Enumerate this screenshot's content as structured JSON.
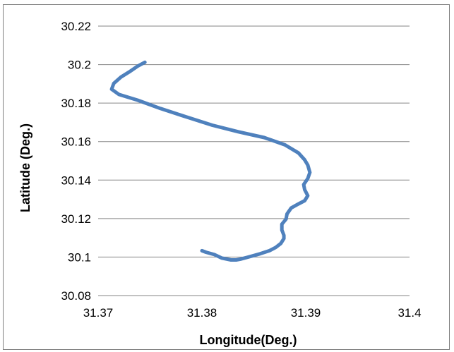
{
  "chart_data": {
    "type": "line",
    "title": "",
    "xlabel": "Longitude(Deg.)",
    "ylabel": "Latitude (Deg.)",
    "xlim": [
      31.37,
      31.4
    ],
    "ylim": [
      30.08,
      30.22
    ],
    "x_ticks": [
      "31.37",
      "31.38",
      "31.39",
      "31.4"
    ],
    "y_ticks": [
      "30.22",
      "30.2",
      "30.18",
      "30.16",
      "30.14",
      "30.12",
      "30.1",
      "30.08"
    ],
    "grid": "horizontal",
    "legend": "none",
    "line_color": "#4f81bd",
    "series": [
      {
        "x": [
          31.3745,
          31.3738,
          31.373,
          31.3722,
          31.3715,
          31.3713,
          31.372,
          31.3738,
          31.376,
          31.3785,
          31.381,
          31.3835,
          31.386,
          31.388,
          31.3893,
          31.3899,
          31.3902,
          31.3904,
          31.3902,
          31.3898,
          31.3899,
          31.3902,
          31.3899,
          31.3893,
          31.3886,
          31.3882,
          31.3881,
          31.3877,
          31.3877,
          31.3879,
          31.3879,
          31.3876,
          31.3871,
          31.3865,
          31.3856,
          31.3846,
          31.3837,
          31.3833,
          31.3828,
          31.3819,
          31.3812,
          31.3804,
          31.38
        ],
        "y": [
          30.2012,
          30.1992,
          30.1962,
          30.1935,
          30.1902,
          30.1872,
          30.1845,
          30.1815,
          30.1772,
          30.1728,
          30.1685,
          30.1651,
          30.1621,
          30.1583,
          30.1541,
          30.1505,
          30.1478,
          30.144,
          30.1408,
          30.1377,
          30.135,
          30.1319,
          30.1293,
          30.1276,
          30.1255,
          30.1224,
          30.1197,
          30.1171,
          30.1141,
          30.1113,
          30.1096,
          30.1071,
          30.105,
          30.1033,
          30.1017,
          30.1002,
          30.0989,
          30.0985,
          30.0985,
          30.0995,
          30.1013,
          30.1025,
          30.1033
        ]
      }
    ]
  }
}
